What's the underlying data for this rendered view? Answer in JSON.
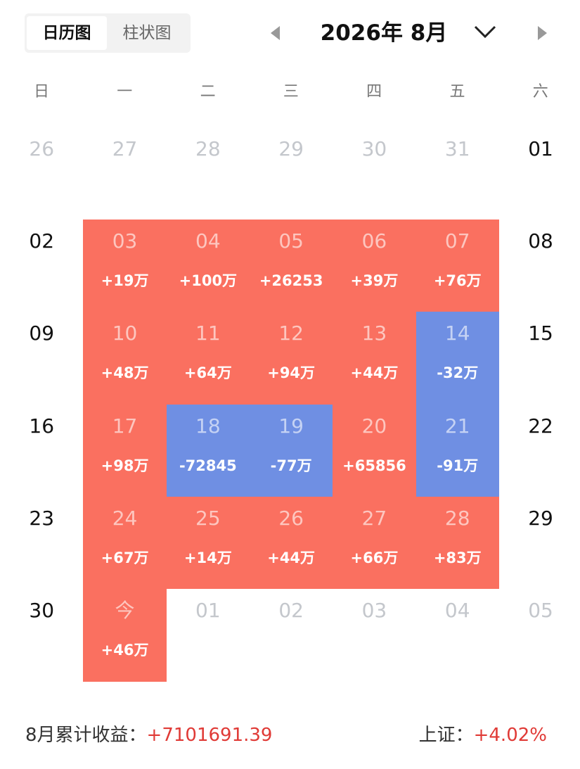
{
  "tabs": [
    "日历图",
    "柱状图"
  ],
  "header": {
    "title": "2026年 8月"
  },
  "weekdays": [
    "日",
    "一",
    "二",
    "三",
    "四",
    "五",
    "六"
  ],
  "weeks": [
    [
      {
        "day": "26",
        "muted": true
      },
      {
        "day": "27",
        "muted": true
      },
      {
        "day": "28",
        "muted": true
      },
      {
        "day": "29",
        "muted": true
      },
      {
        "day": "30",
        "muted": true
      },
      {
        "day": "31",
        "muted": true
      },
      {
        "day": "01"
      }
    ],
    [
      {
        "day": "02"
      },
      {
        "day": "03",
        "change": "+19万"
      },
      {
        "day": "04",
        "change": "+100万"
      },
      {
        "day": "05",
        "change": "+26253"
      },
      {
        "day": "06",
        "change": "+39万"
      },
      {
        "day": "07",
        "change": "+76万"
      },
      {
        "day": "08"
      }
    ],
    [
      {
        "day": "09"
      },
      {
        "day": "10",
        "change": "+48万"
      },
      {
        "day": "11",
        "change": "+64万"
      },
      {
        "day": "12",
        "change": "+94万"
      },
      {
        "day": "13",
        "change": "+44万"
      },
      {
        "day": "14",
        "change": "-32万"
      },
      {
        "day": "15"
      }
    ],
    [
      {
        "day": "16"
      },
      {
        "day": "17",
        "change": "+98万"
      },
      {
        "day": "18",
        "change": "-72845"
      },
      {
        "day": "19",
        "change": "-77万"
      },
      {
        "day": "20",
        "change": "+65856"
      },
      {
        "day": "21",
        "change": "-91万"
      },
      {
        "day": "22"
      }
    ],
    [
      {
        "day": "23"
      },
      {
        "day": "24",
        "change": "+67万"
      },
      {
        "day": "25",
        "change": "+14万"
      },
      {
        "day": "26",
        "change": "+44万"
      },
      {
        "day": "27",
        "change": "+66万"
      },
      {
        "day": "28",
        "change": "+83万"
      },
      {
        "day": "29"
      }
    ],
    [
      {
        "day": "30"
      },
      {
        "day": "今",
        "change": "+46万"
      },
      {
        "day": "01",
        "muted": true
      },
      {
        "day": "02",
        "muted": true
      },
      {
        "day": "03",
        "muted": true
      },
      {
        "day": "04",
        "muted": true
      },
      {
        "day": "05",
        "muted": true
      }
    ]
  ],
  "footer": {
    "month_label": "8月累计收益：",
    "month_total": "+7101691.39",
    "index_label": "上证：",
    "index_change": "+4.02%"
  }
}
